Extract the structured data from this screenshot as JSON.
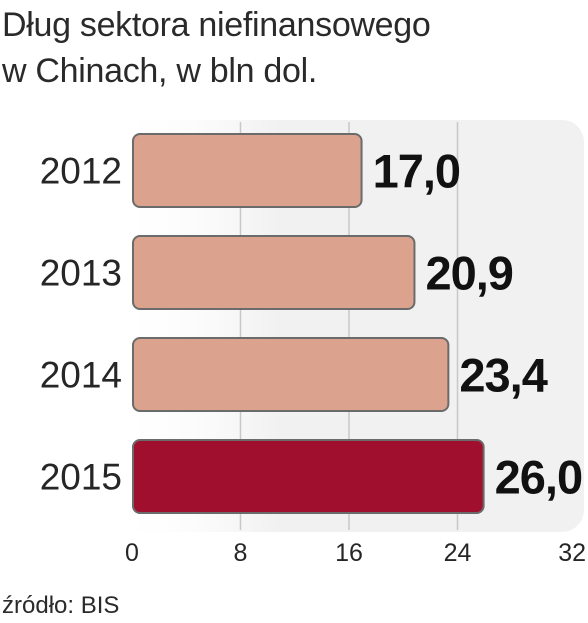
{
  "title_lines": [
    "Dług sektora niefinansowego",
    "w Chinach, w bln dol."
  ],
  "source": "źródło: BIS",
  "chart_data": {
    "type": "bar",
    "orientation": "horizontal",
    "title": "Dług sektora niefinansowego w Chinach, w bln dol.",
    "categories": [
      "2012",
      "2013",
      "2014",
      "2015"
    ],
    "values": [
      17.0,
      20.9,
      23.4,
      26.0
    ],
    "value_labels": [
      "17,0",
      "20,9",
      "23,4",
      "26,0"
    ],
    "xlim": [
      0,
      32
    ],
    "x_ticks": [
      0,
      8,
      16,
      24,
      32
    ],
    "grid": "vertical",
    "colors": {
      "bar": "#dba38d",
      "highlight_bar": "#a00f2e",
      "bar_border": "#6b6b6b",
      "plot_background": "#f1f1f1",
      "gridline": "#c8c8c8"
    },
    "highlight_index": 3
  }
}
